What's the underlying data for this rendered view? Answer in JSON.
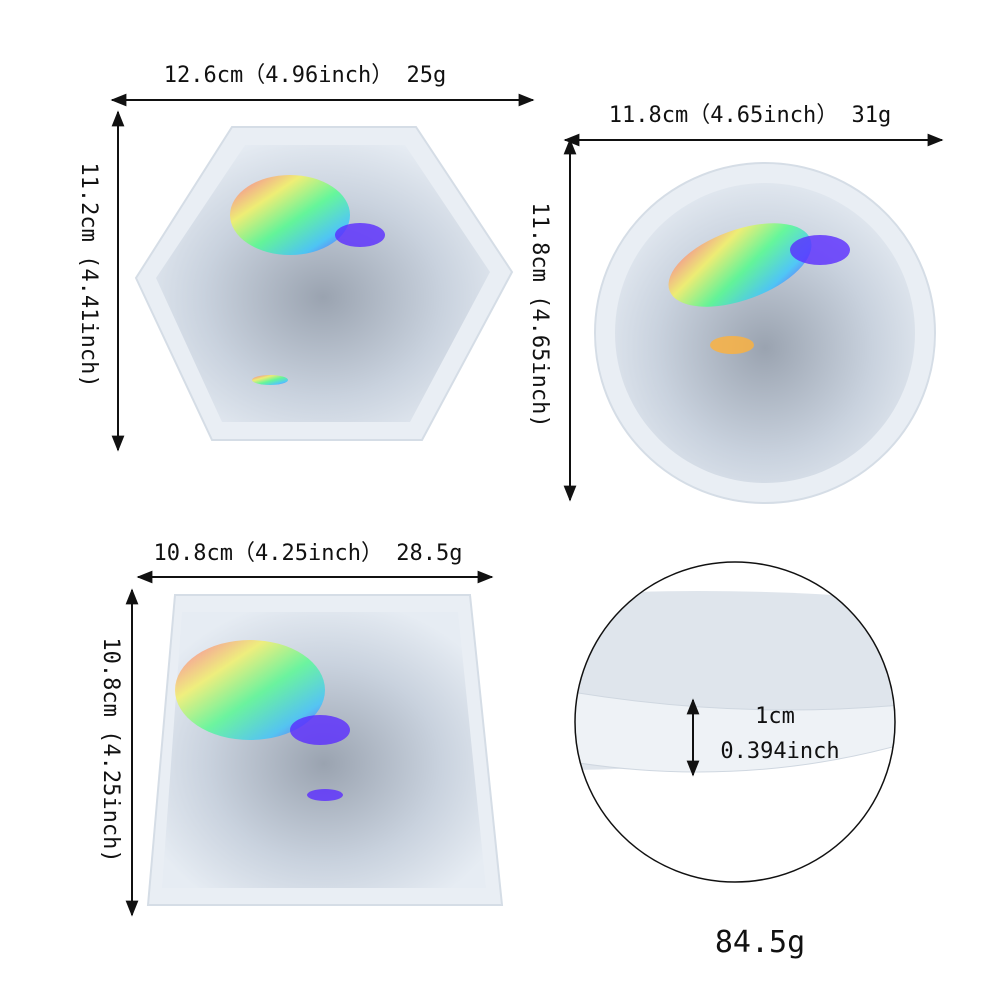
{
  "products": [
    {
      "shape": "hexagon",
      "width_label": "12.6cm（4.96inch） 25g",
      "height_label": "11.2cm (4.41inch)"
    },
    {
      "shape": "round",
      "width_label": "11.8cm（4.65inch） 31g",
      "height_label": "11.8cm (4.65inch)"
    },
    {
      "shape": "square",
      "width_label": "10.8cm（4.25inch） 28.5g",
      "height_label": "10.8cm (4.25inch)"
    }
  ],
  "thickness": {
    "metric": "1cm",
    "imperial": "0.394inch"
  },
  "total_weight": "84.5g"
}
